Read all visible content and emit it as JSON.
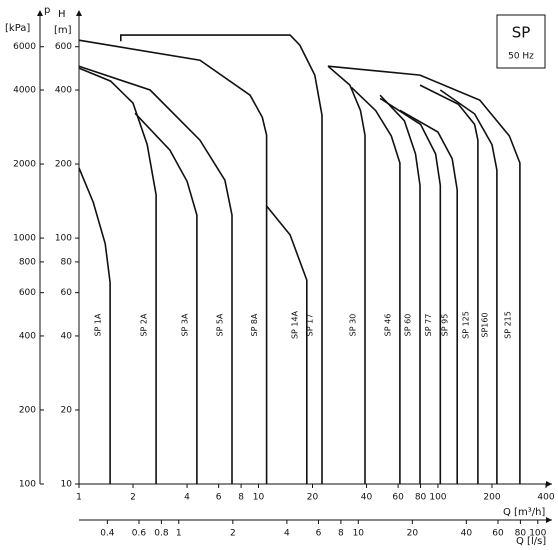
{
  "chart_data": {
    "type": "line",
    "p_label": "p",
    "p_unit": "[kPa]",
    "h_label": "H",
    "h_unit": "[m]",
    "x_label": "Q [m³/h]",
    "x2_label": "Q [l/s]",
    "legend_box": {
      "title": "SP",
      "subtitle": "50 Hz"
    },
    "log_x": true,
    "log_y": true,
    "xlim": [
      1,
      400
    ],
    "xticks": [
      1,
      2,
      4,
      6,
      8,
      10,
      20,
      40,
      60,
      80,
      100,
      200,
      400
    ],
    "x2lim": [
      0.278,
      111.1
    ],
    "x2ticks": [
      0.4,
      0.6,
      0.8,
      1,
      2,
      4,
      6,
      8,
      10,
      20,
      40,
      60,
      80,
      100
    ],
    "ylim": [
      10,
      800
    ],
    "yticks": [
      10,
      20,
      40,
      60,
      80,
      100,
      200,
      400,
      600
    ],
    "y2lim": [
      100,
      8000
    ],
    "y2ticks": [
      100,
      200,
      400,
      600,
      800,
      1000,
      2000,
      4000,
      6000
    ],
    "series": [
      {
        "name": "SP 1A",
        "color": "#111",
        "x": [
          1,
          1.2,
          1.4,
          1.49,
          1.49
        ],
        "values": [
          193,
          140,
          95,
          66,
          10
        ]
      },
      {
        "name": "SP 2A",
        "color": "#111",
        "x": [
          1,
          1.5,
          2,
          2.4,
          2.69,
          2.69
        ],
        "values": [
          491,
          435,
          354,
          240,
          150,
          10
        ]
      },
      {
        "name": "SP 3A",
        "color": "#111",
        "x": [
          2.05,
          3.21,
          4,
          4.54,
          4.54
        ],
        "values": [
          322,
          228,
          170,
          124,
          10
        ]
      },
      {
        "name": "SP 5A",
        "color": "#111",
        "x": [
          1,
          2.49,
          4.72,
          6.5,
          7.12,
          7.12
        ],
        "values": [
          500,
          400,
          250,
          172,
          124,
          10
        ]
      },
      {
        "name": "SP 8A",
        "color": "#111",
        "x": [
          1,
          4.72,
          8.98,
          10.5,
          11.1,
          11.1
        ],
        "values": [
          638,
          529,
          381,
          310,
          262,
          10
        ]
      },
      {
        "name": "SP 14A",
        "color": "#111",
        "x": [
          11.1,
          15,
          18.6,
          18.6
        ],
        "values": [
          135,
          103,
          67.5,
          10
        ]
      },
      {
        "name": "SP 17",
        "color": "#111",
        "x": [
          1.71,
          1.71,
          15,
          17,
          20.6,
          22.6,
          22.6
        ],
        "values": [
          632,
          669,
          669,
          609,
          460,
          316,
          10
        ]
      },
      {
        "name": "SP 30",
        "color": "#111",
        "x": [
          24.4,
          32.3,
          37,
          39.2,
          39.2
        ],
        "values": [
          500,
          419,
          330,
          262,
          10
        ]
      },
      {
        "name": "SP 46",
        "color": "#111",
        "x": [
          33,
          45,
          55,
          61.4,
          61.4
        ],
        "values": [
          410,
          330,
          260,
          202,
          10
        ]
      },
      {
        "name": "SP 60",
        "color": "#111",
        "x": [
          47.6,
          65,
          75,
          79.4,
          79.4
        ],
        "values": [
          381,
          300,
          220,
          164,
          10
        ]
      },
      {
        "name": "SP 77",
        "color": "#111",
        "x": [
          47.6,
          80,
          97,
          103,
          103
        ],
        "values": [
          370,
          290,
          220,
          164,
          10
        ]
      },
      {
        "name": "SP 95",
        "color": "#111",
        "x": [
          61.4,
          100,
          120,
          128,
          128
        ],
        "values": [
          331,
          270,
          210,
          157,
          10
        ]
      },
      {
        "name": "SP 125",
        "color": "#111",
        "x": [
          79.4,
          130,
          160,
          167,
          167
        ],
        "values": [
          419,
          350,
          290,
          250,
          10
        ]
      },
      {
        "name": "SP160",
        "color": "#111",
        "x": [
          103,
          160,
          200,
          213,
          213
        ],
        "values": [
          400,
          320,
          240,
          189,
          10
        ]
      },
      {
        "name": "SP 215",
        "color": "#111",
        "x": [
          24.4,
          79.4,
          171,
          250,
          286,
          286
        ],
        "values": [
          500,
          460,
          364,
          260,
          202,
          10
        ]
      }
    ]
  }
}
